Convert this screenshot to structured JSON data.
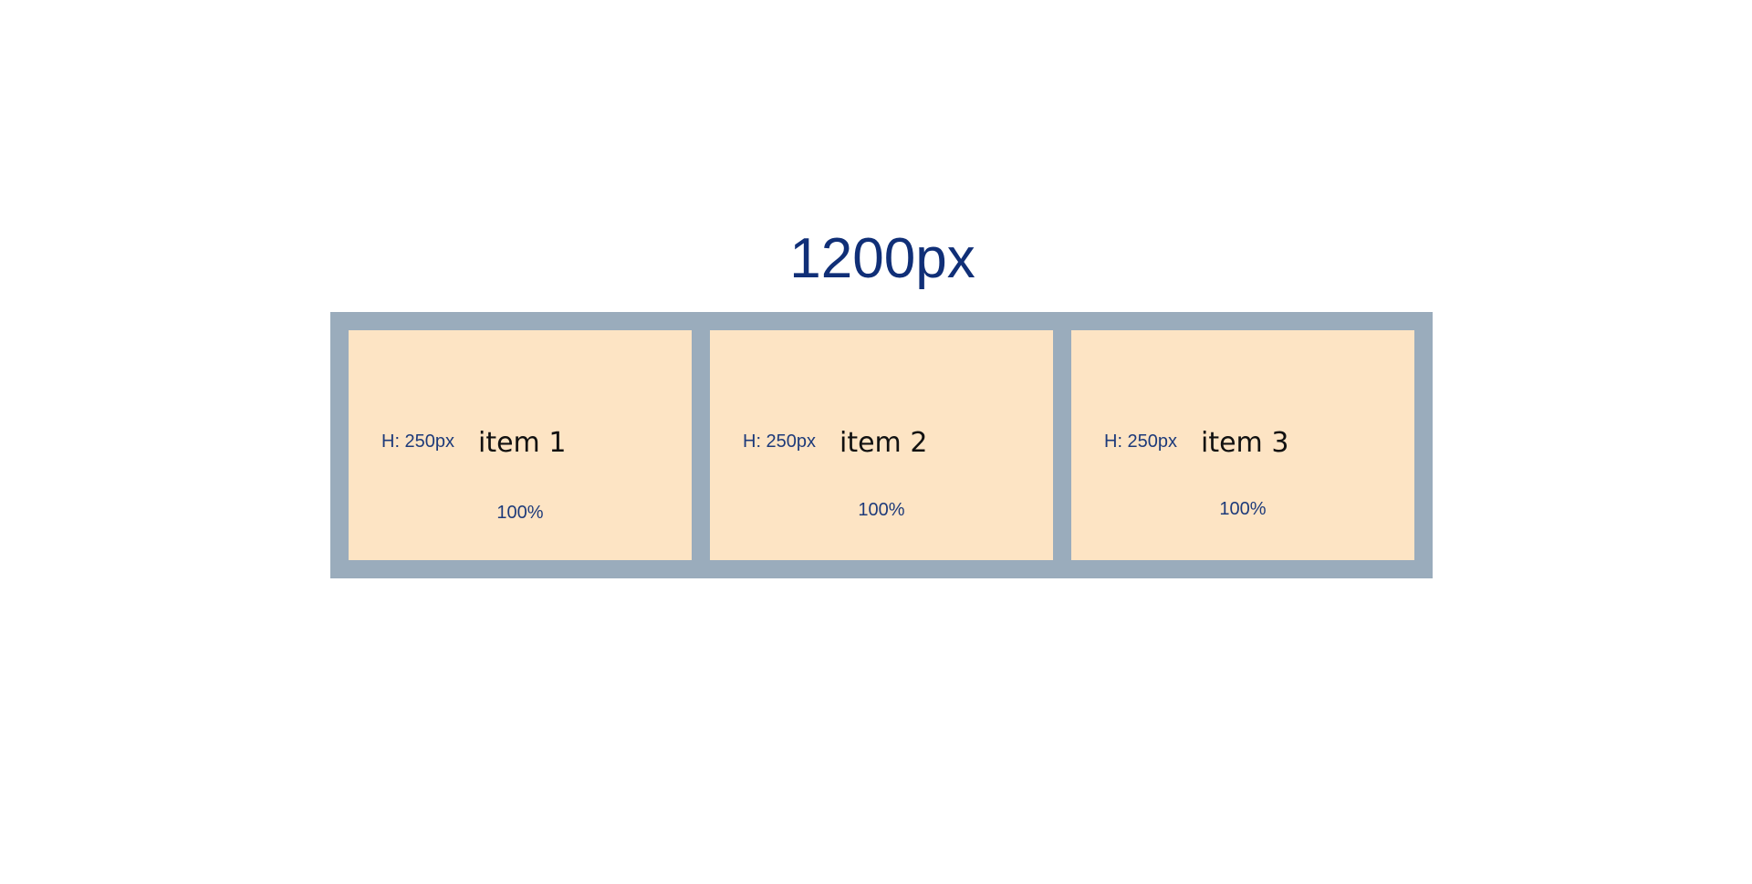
{
  "title": "1200px",
  "items": [
    {
      "name": "item 1",
      "height_label": "H: 250px",
      "width_label": "100%"
    },
    {
      "name": "item 2",
      "height_label": "H: 250px",
      "width_label": "100%"
    },
    {
      "name": "item 3",
      "height_label": "H: 250px",
      "width_label": "100%"
    }
  ],
  "colors": {
    "title_text": "#102f77",
    "container_background": "#9aacbc",
    "item_background": "#fde4c4",
    "item_name_text": "#111111",
    "annotation_text": "#1d3a7a"
  }
}
